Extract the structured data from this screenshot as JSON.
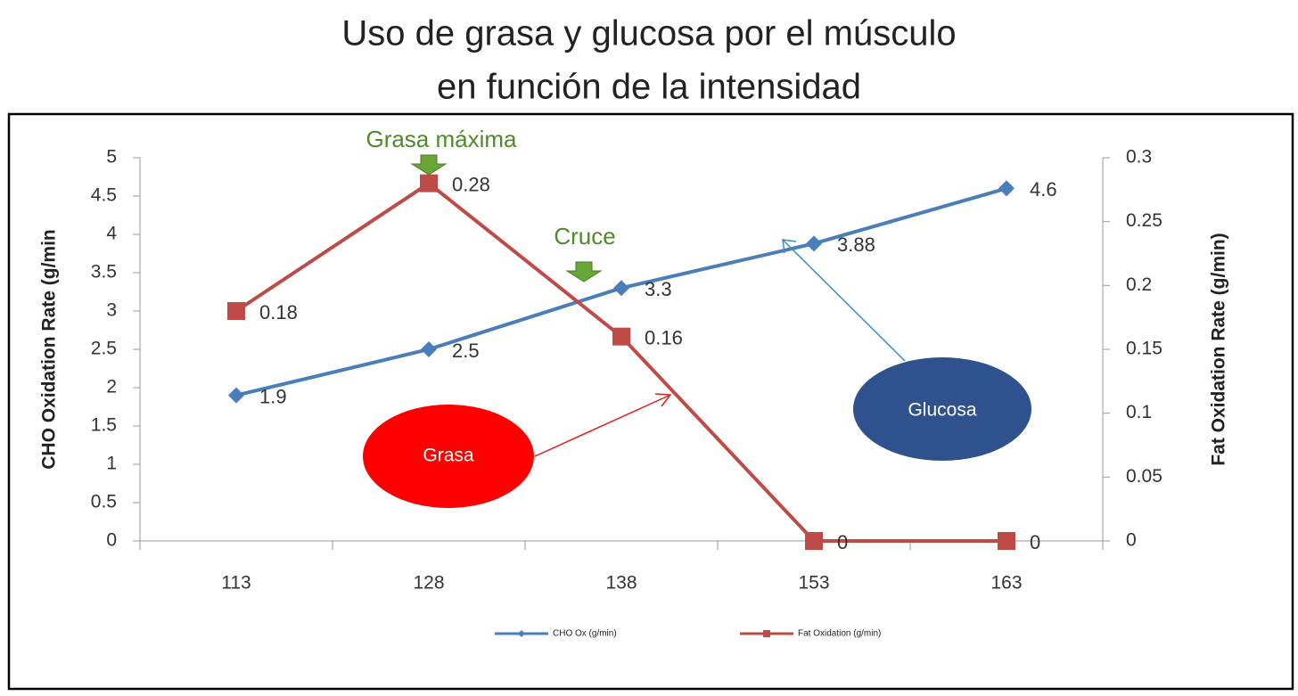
{
  "chart_data": {
    "type": "line",
    "title": [
      "Uso de grasa y glucosa por el músculo",
      "en función de la intensidad"
    ],
    "categories": [
      "113",
      "128",
      "138",
      "153",
      "163"
    ],
    "series": [
      {
        "name": "CHO Ox (g/min)",
        "color": "#4a7ebb",
        "marker": "diamond",
        "values": [
          1.9,
          2.5,
          3.3,
          3.88,
          4.6
        ]
      },
      {
        "name": "Fat Oxidation (g/min)",
        "color": "#be4b48",
        "marker": "square",
        "axis": "y2",
        "values": [
          0.18,
          0.28,
          0.16,
          0,
          0
        ]
      }
    ],
    "ylabel": "CHO Oxidation Rate (g/min",
    "y2label": "Fat Oxidation Rate (g/min)",
    "ylim": [
      0,
      5
    ],
    "yticks": [
      0,
      0.5,
      1,
      1.5,
      2,
      2.5,
      3,
      3.5,
      4,
      4.5,
      5
    ],
    "y2lim": [
      0,
      0.3
    ],
    "y2ticks": [
      0,
      0.05,
      0.1,
      0.15,
      0.2,
      0.25,
      0.3
    ],
    "annotations": [
      "Grasa máxima",
      "Cruce",
      "Grasa",
      "Glucosa"
    ]
  }
}
